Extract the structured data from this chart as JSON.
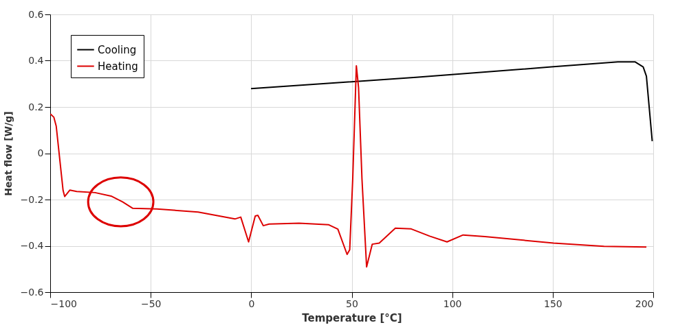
{
  "chart_data": {
    "type": "line",
    "xlabel": "Temperature [°C]",
    "ylabel": "Heat flow [W/g]",
    "xlim": [
      -100,
      200
    ],
    "xticks": [
      -100,
      -50,
      0,
      50,
      100,
      150,
      200
    ],
    "ylim": [
      -0.6,
      0.6
    ],
    "yticks": [
      -0.6,
      -0.4,
      -0.2,
      0,
      0.2,
      0.4,
      0.6
    ],
    "grid": true,
    "legend": "top left",
    "marker": "none",
    "line_style": "solid",
    "series": [
      {
        "name": "Cooling",
        "color": "#000000",
        "x": [
          -0.1,
          82,
          149.3,
          182.4,
          190.9,
          195,
          196.6,
          199.5
        ],
        "values": [
          0.279,
          0.328,
          0.373,
          0.395,
          0.395,
          0.373,
          0.333,
          0.052
        ]
      },
      {
        "name": "Heating",
        "color": "#dd0000",
        "x": [
          -99.9,
          -98.2,
          -97,
          -93.6,
          -92.8,
          -90.2,
          -86.8,
          -77.7,
          -69.7,
          -64,
          -58.9,
          -46.9,
          -26.4,
          -8.1,
          -5.2,
          -1.3,
          2,
          3.3,
          6,
          8.9,
          23.8,
          38.6,
          43.1,
          47.7,
          49,
          50.5,
          52.3,
          53.4,
          55.1,
          57.4,
          60.2,
          63.7,
          71.7,
          79.6,
          88.8,
          97.4,
          105.4,
          116.2,
          150.4,
          175.5,
          196.6
        ],
        "values": [
          0.17,
          0.156,
          0.117,
          -0.16,
          -0.187,
          -0.159,
          -0.165,
          -0.17,
          -0.185,
          -0.21,
          -0.238,
          -0.241,
          -0.254,
          -0.284,
          -0.276,
          -0.383,
          -0.271,
          -0.268,
          -0.313,
          -0.306,
          -0.302,
          -0.309,
          -0.328,
          -0.437,
          -0.417,
          -0.111,
          0.378,
          0.284,
          -0.111,
          -0.491,
          -0.393,
          -0.388,
          -0.324,
          -0.327,
          -0.358,
          -0.383,
          -0.353,
          -0.36,
          -0.388,
          -0.402,
          -0.405
        ]
      }
    ]
  }
}
